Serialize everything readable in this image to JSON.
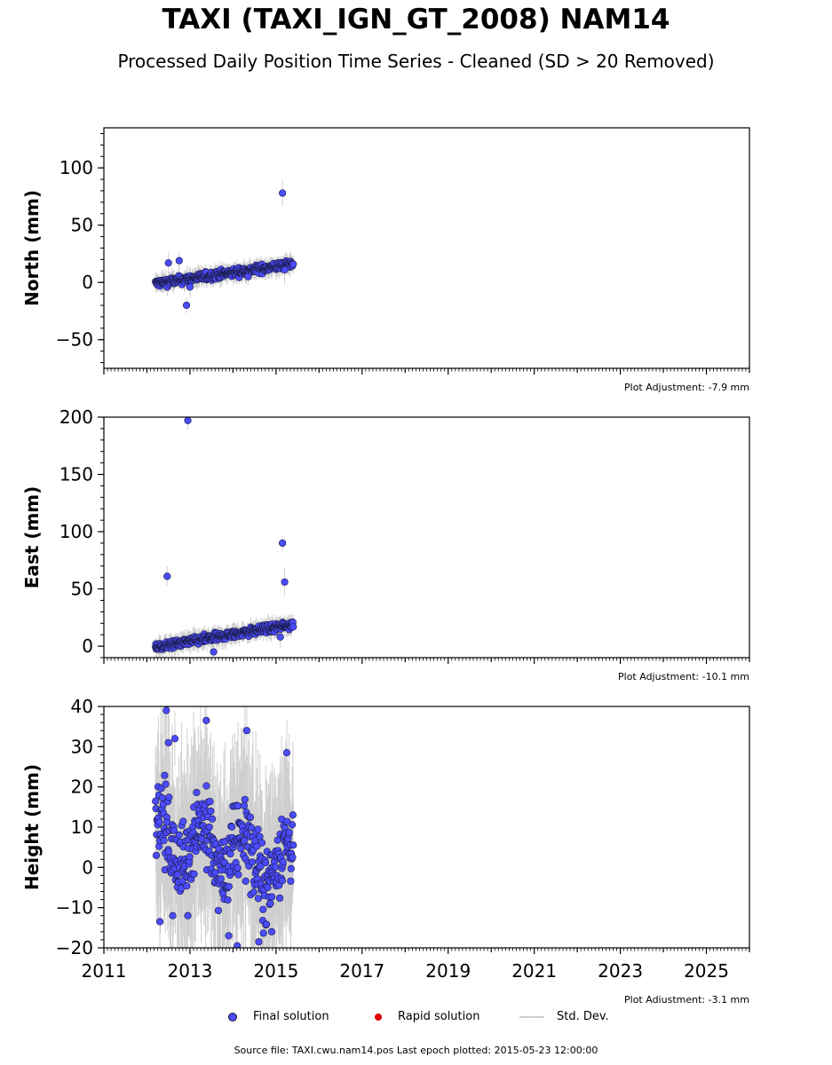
{
  "page": {
    "title": "TAXI (TAXI_IGN_GT_2008) NAM14",
    "subtitle": "Processed Daily Position Time Series - Cleaned (SD > 20 Removed)",
    "source": "Source file: TAXI.cwu.nam14.pos  Last epoch plotted: 2015-05-23 12:00:00"
  },
  "legend": {
    "final": "Final solution",
    "rapid": "Rapid solution",
    "std": "Std. Dev.",
    "final_color": "#4b4bff",
    "rapid_color": "#e00000",
    "std_color": "#cfcfcf"
  },
  "chart_data": [
    {
      "type": "scatter",
      "ylabel": "North (mm)",
      "adjustment": "Plot Adjustment: -7.9 mm",
      "xlim": [
        2011,
        2026
      ],
      "ylim": [
        -75,
        135
      ],
      "yticks": [
        -50,
        0,
        50,
        100
      ],
      "ytick_labels": [
        "−50",
        "0",
        "50",
        "100"
      ],
      "trend": {
        "x": [
          2012.2,
          2015.4
        ],
        "y": [
          -1,
          16
        ],
        "noise": 2.5
      },
      "outliers": [
        {
          "x": 2012.5,
          "y": 17
        },
        {
          "x": 2012.75,
          "y": 19
        },
        {
          "x": 2012.92,
          "y": -20
        },
        {
          "x": 2013.0,
          "y": -4
        },
        {
          "x": 2014.35,
          "y": 5
        },
        {
          "x": 2015.15,
          "y": 78
        },
        {
          "x": 2015.2,
          "y": 11
        }
      ]
    },
    {
      "type": "scatter",
      "ylabel": "East (mm)",
      "adjustment": "Plot Adjustment: -10.1 mm",
      "xlim": [
        2011,
        2026
      ],
      "ylim": [
        -10,
        200
      ],
      "yticks": [
        0,
        50,
        100,
        150,
        200
      ],
      "ytick_labels": [
        "0",
        "50",
        "100",
        "150",
        "200"
      ],
      "trend": {
        "x": [
          2012.2,
          2015.4
        ],
        "y": [
          -1,
          19
        ],
        "noise": 2.5
      },
      "outliers": [
        {
          "x": 2012.47,
          "y": 61
        },
        {
          "x": 2012.95,
          "y": 197
        },
        {
          "x": 2013.55,
          "y": -5
        },
        {
          "x": 2015.15,
          "y": 90
        },
        {
          "x": 2015.2,
          "y": 56
        },
        {
          "x": 2015.1,
          "y": 8
        }
      ]
    },
    {
      "type": "scatter",
      "ylabel": "Height (mm)",
      "adjustment": "Plot Adjustment: -3.1 mm",
      "xlim": [
        2011,
        2026
      ],
      "ylim": [
        -20,
        40
      ],
      "yticks": [
        -20,
        -10,
        0,
        10,
        20,
        30,
        40
      ],
      "ytick_labels": [
        "−20",
        "−10",
        "0",
        "10",
        "20",
        "30",
        "40"
      ],
      "xticks": [
        2011,
        2013,
        2015,
        2017,
        2019,
        2021,
        2023,
        2025
      ],
      "xtick_labels": [
        "2011",
        "2013",
        "2015",
        "2017",
        "2019",
        "2021",
        "2023",
        "2025"
      ],
      "trend": {
        "x": [
          2012.2,
          2015.4
        ],
        "y": [
          8,
          0
        ],
        "noise": 7
      },
      "outliers": [
        {
          "x": 2012.45,
          "y": 39
        },
        {
          "x": 2012.5,
          "y": 31
        },
        {
          "x": 2012.65,
          "y": 32
        },
        {
          "x": 2013.38,
          "y": 36.5
        },
        {
          "x": 2014.32,
          "y": 34
        },
        {
          "x": 2012.3,
          "y": -13.5
        },
        {
          "x": 2012.6,
          "y": -12
        },
        {
          "x": 2012.95,
          "y": -12
        },
        {
          "x": 2013.9,
          "y": -17
        },
        {
          "x": 2014.1,
          "y": -19.5
        },
        {
          "x": 2014.6,
          "y": -18.5
        },
        {
          "x": 2014.9,
          "y": -16
        },
        {
          "x": 2015.25,
          "y": 28.5
        }
      ]
    }
  ]
}
